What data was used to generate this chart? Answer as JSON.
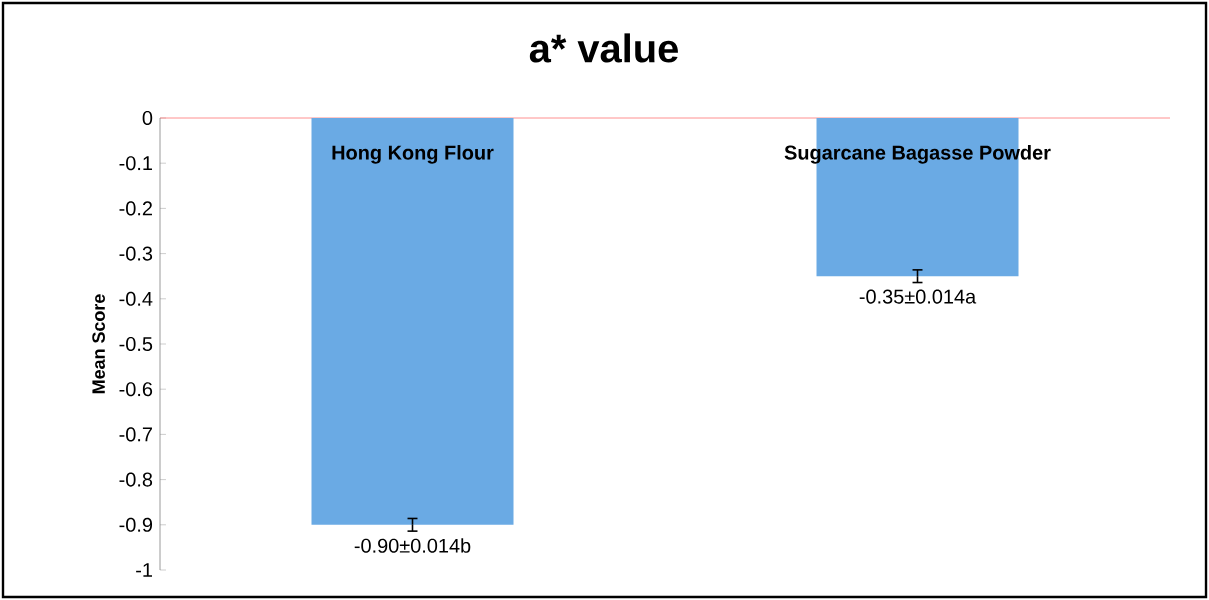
{
  "chart_data": {
    "type": "bar",
    "title": "a* value",
    "ylabel": "Mean Score",
    "categories": [
      "Hong Kong Flour",
      "Sugarcane Bagasse Powder"
    ],
    "values": [
      -0.9,
      -0.35
    ],
    "errors": [
      0.014,
      0.014
    ],
    "value_labels": [
      "-0.90±0.014b",
      "-0.35±0.014a"
    ],
    "color": "#6aaae4",
    "ylim": [
      -1,
      0
    ],
    "yticks": [
      0,
      -0.1,
      -0.2,
      -0.3,
      -0.4,
      -0.5,
      -0.6,
      -0.7,
      -0.8,
      -0.9,
      -1
    ]
  }
}
